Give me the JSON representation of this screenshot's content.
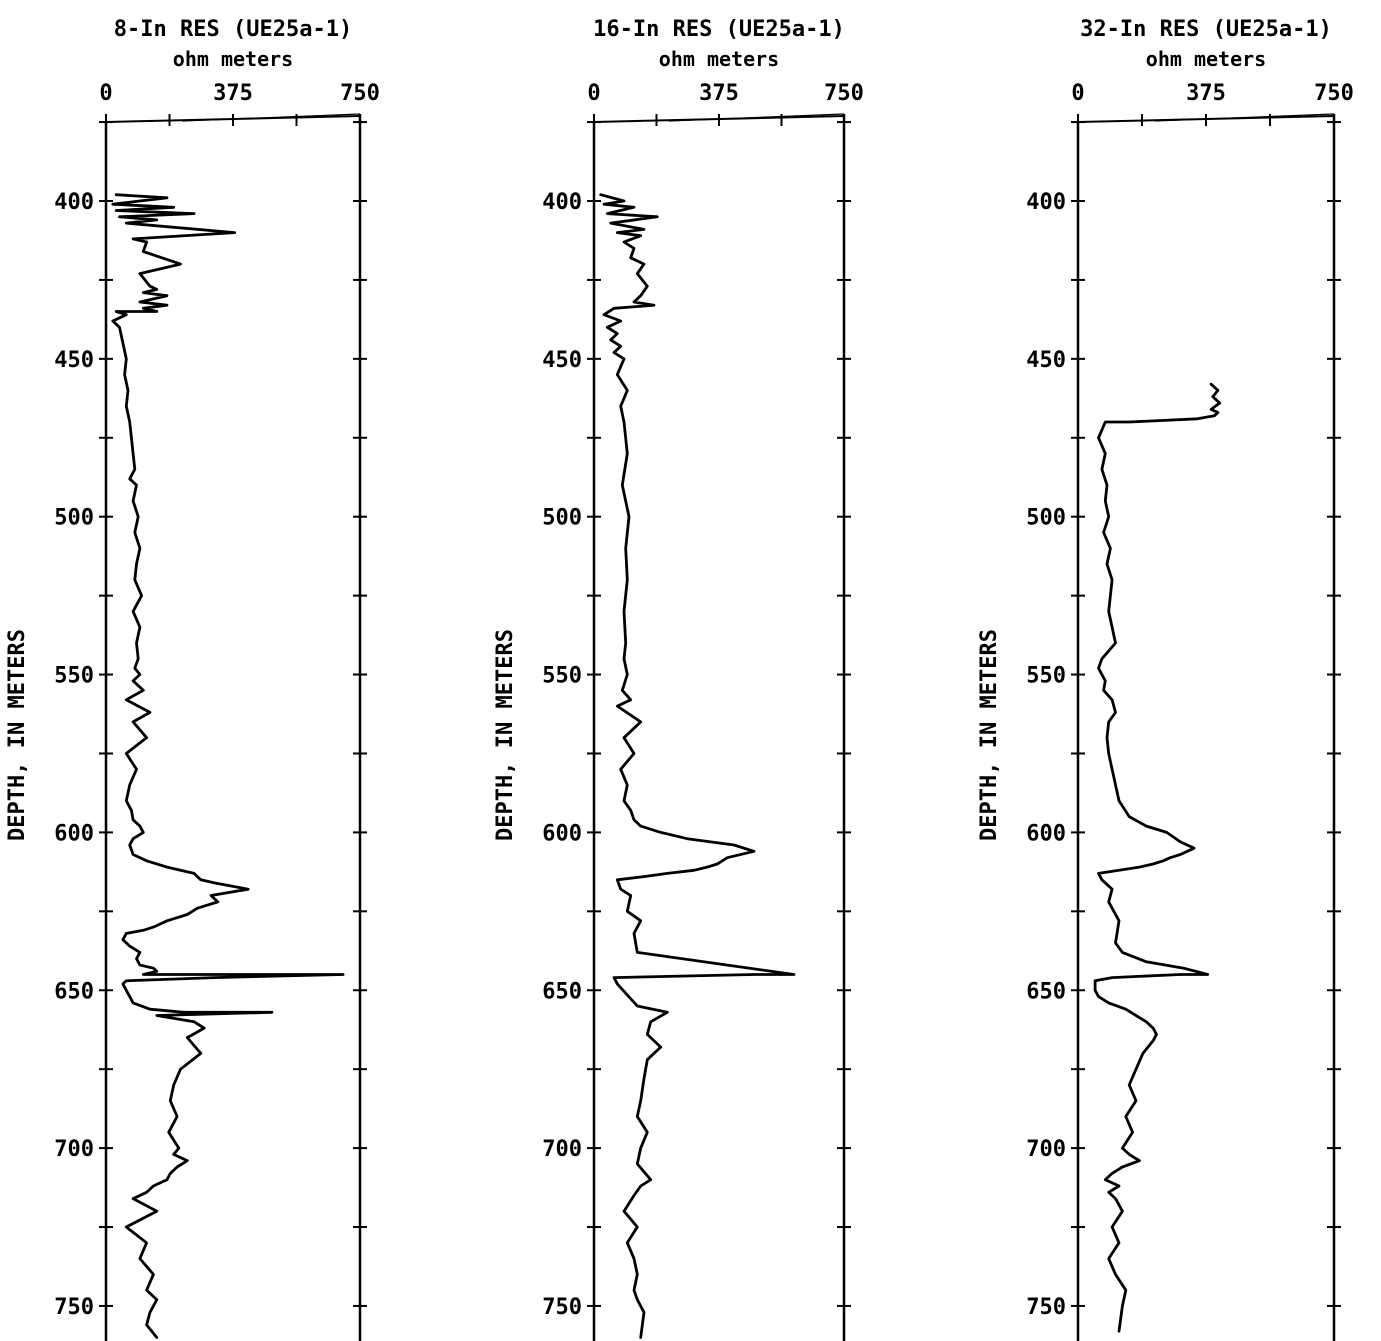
{
  "chart_data": [
    {
      "type": "line",
      "title": "8-In RES (UE25a-1)",
      "xlabel": "ohm meters",
      "ylabel": "DEPTH, IN METERS",
      "xlim": [
        0,
        750
      ],
      "ylim": [
        375,
        760
      ],
      "y_inverted": true,
      "xticks": [
        "0",
        "375",
        "750"
      ],
      "yticks": [
        "400",
        "450",
        "500",
        "550",
        "600",
        "650",
        "700",
        "750"
      ],
      "series": [
        {
          "x": [
            30,
            180,
            20,
            200,
            30,
            260,
            40,
            150,
            60,
            380,
            80,
            120,
            110,
            220,
            100,
            130,
            150,
            110,
            180,
            100,
            180,
            110,
            150,
            30,
            60,
            20,
            40,
            50,
            60,
            55,
            65,
            60,
            70,
            75,
            80,
            85,
            70,
            90,
            80,
            95,
            85,
            100,
            90,
            85,
            105,
            80,
            100,
            90,
            95,
            85,
            100,
            80,
            110,
            60,
            130,
            80,
            120,
            60,
            90,
            70,
            60,
            75,
            80,
            100,
            110,
            80,
            70,
            80,
            120,
            180,
            260,
            270,
            280,
            320,
            420,
            310,
            330,
            270,
            240,
            180,
            140,
            110,
            60,
            50,
            70,
            100,
            90,
            100,
            140,
            150,
            110,
            120,
            115,
            600,
            700,
            320,
            60,
            50,
            60,
            80,
            130,
            230,
            490,
            150,
            260,
            290,
            240,
            280,
            220,
            200,
            190,
            210,
            185,
            215,
            200,
            240,
            210,
            190,
            180,
            140,
            120,
            80,
            150,
            60,
            120,
            100,
            140,
            120,
            150,
            140,
            130,
            120,
            150
          ],
          "y": [
            398,
            399,
            401,
            402,
            403,
            404,
            405,
            406,
            407,
            410,
            412,
            413,
            416,
            420,
            423,
            427,
            428,
            429,
            430,
            432,
            433,
            434,
            435,
            435,
            436,
            438,
            440,
            445,
            450,
            455,
            460,
            465,
            470,
            475,
            480,
            485,
            488,
            490,
            495,
            500,
            505,
            510,
            515,
            520,
            525,
            530,
            535,
            540,
            545,
            548,
            550,
            552,
            555,
            558,
            562,
            565,
            570,
            575,
            580,
            585,
            590,
            593,
            596,
            598,
            600,
            602,
            604,
            607,
            609,
            611,
            613,
            614,
            615,
            616,
            618,
            620,
            622,
            624,
            626,
            628,
            630,
            631,
            632,
            634,
            636,
            638,
            640,
            642,
            643,
            644,
            645,
            645,
            645,
            645,
            645,
            646,
            647,
            648,
            650,
            654,
            656,
            657,
            657,
            658,
            660,
            662,
            665,
            670,
            675,
            680,
            685,
            690,
            695,
            700,
            702,
            704,
            706,
            708,
            710,
            712,
            714,
            716,
            720,
            725,
            730,
            735,
            740,
            745,
            748,
            750,
            752,
            756,
            760
          ]
        }
      ]
    },
    {
      "type": "line",
      "title": "16-In RES (UE25a-1)",
      "xlabel": "ohm meters",
      "ylabel": "DEPTH, IN METERS",
      "xlim": [
        0,
        750
      ],
      "ylim": [
        375,
        760
      ],
      "y_inverted": true,
      "xticks": [
        "0",
        "375",
        "750"
      ],
      "yticks": [
        "400",
        "450",
        "500",
        "550",
        "600",
        "650",
        "700",
        "750"
      ],
      "series": [
        {
          "x": [
            20,
            90,
            30,
            120,
            40,
            190,
            50,
            150,
            70,
            140,
            90,
            120,
            110,
            150,
            130,
            160,
            140,
            120,
            180,
            60,
            30,
            80,
            40,
            70,
            50,
            80,
            60,
            90,
            70,
            100,
            80,
            90,
            100,
            85,
            105,
            95,
            100,
            90,
            95,
            90,
            100,
            85,
            110,
            70,
            140,
            90,
            120,
            80,
            100,
            90,
            110,
            120,
            140,
            200,
            280,
            420,
            480,
            400,
            370,
            340,
            300,
            220,
            150,
            70,
            80,
            110,
            100,
            140,
            120,
            130,
            600,
            480,
            60,
            70,
            130,
            220,
            170,
            160,
            200,
            160,
            150,
            140,
            130,
            160,
            140,
            130,
            170,
            140,
            120,
            90,
            130,
            100,
            120,
            130,
            120,
            130,
            150,
            140
          ],
          "y": [
            398,
            400,
            401,
            402,
            404,
            405,
            407,
            409,
            410,
            411,
            413,
            415,
            418,
            420,
            423,
            427,
            430,
            432,
            433,
            434,
            436,
            438,
            440,
            442,
            444,
            446,
            448,
            450,
            455,
            460,
            465,
            470,
            480,
            490,
            500,
            510,
            520,
            530,
            540,
            545,
            550,
            555,
            558,
            560,
            565,
            570,
            575,
            580,
            585,
            590,
            593,
            596,
            598,
            600,
            602,
            604,
            606,
            608,
            610,
            611,
            612,
            613,
            614,
            615,
            618,
            620,
            625,
            628,
            632,
            638,
            645,
            645,
            646,
            648,
            655,
            657,
            660,
            664,
            668,
            672,
            678,
            685,
            690,
            695,
            700,
            705,
            710,
            712,
            715,
            720,
            725,
            730,
            735,
            740,
            745,
            748,
            752,
            760
          ]
        }
      ]
    },
    {
      "type": "line",
      "title": "32-In RES (UE25a-1)",
      "xlabel": "ohm meters",
      "ylabel": "DEPTH, IN METERS",
      "xlim": [
        0,
        750
      ],
      "ylim": [
        375,
        760
      ],
      "y_inverted": true,
      "xticks": [
        "0",
        "375",
        "750"
      ],
      "yticks": [
        "400",
        "450",
        "500",
        "550",
        "600",
        "650",
        "700",
        "750"
      ],
      "series": [
        {
          "x": [
            390,
            410,
            395,
            415,
            390,
            410,
            400,
            350,
            150,
            80,
            60,
            80,
            70,
            85,
            80,
            90,
            75,
            95,
            85,
            100,
            90,
            110,
            70,
            60,
            80,
            75,
            100,
            110,
            90,
            85,
            90,
            100,
            120,
            150,
            200,
            260,
            300,
            340,
            300,
            270,
            250,
            220,
            180,
            120,
            60,
            70,
            100,
            90,
            120,
            110,
            130,
            200,
            310,
            380,
            300,
            100,
            50,
            50,
            60,
            90,
            140,
            170,
            200,
            220,
            230,
            220,
            190,
            170,
            150,
            170,
            140,
            160,
            130,
            150,
            180,
            130,
            100,
            80,
            120,
            90,
            110,
            130,
            100,
            120,
            90,
            110,
            140,
            130,
            120
          ],
          "y": [
            458,
            460,
            462,
            464,
            466,
            467,
            468,
            469,
            470,
            470,
            475,
            480,
            485,
            490,
            495,
            500,
            505,
            510,
            515,
            520,
            530,
            540,
            545,
            548,
            552,
            555,
            558,
            562,
            565,
            570,
            575,
            580,
            590,
            595,
            598,
            600,
            603,
            605,
            607,
            608,
            609,
            610,
            611,
            612,
            613,
            615,
            618,
            622,
            628,
            635,
            638,
            641,
            643,
            645,
            645,
            646,
            647,
            650,
            652,
            654,
            656,
            658,
            660,
            662,
            664,
            666,
            670,
            675,
            680,
            685,
            690,
            695,
            700,
            702,
            704,
            706,
            708,
            710,
            712,
            714,
            716,
            720,
            725,
            730,
            735,
            740,
            745,
            750,
            758
          ]
        }
      ]
    }
  ]
}
